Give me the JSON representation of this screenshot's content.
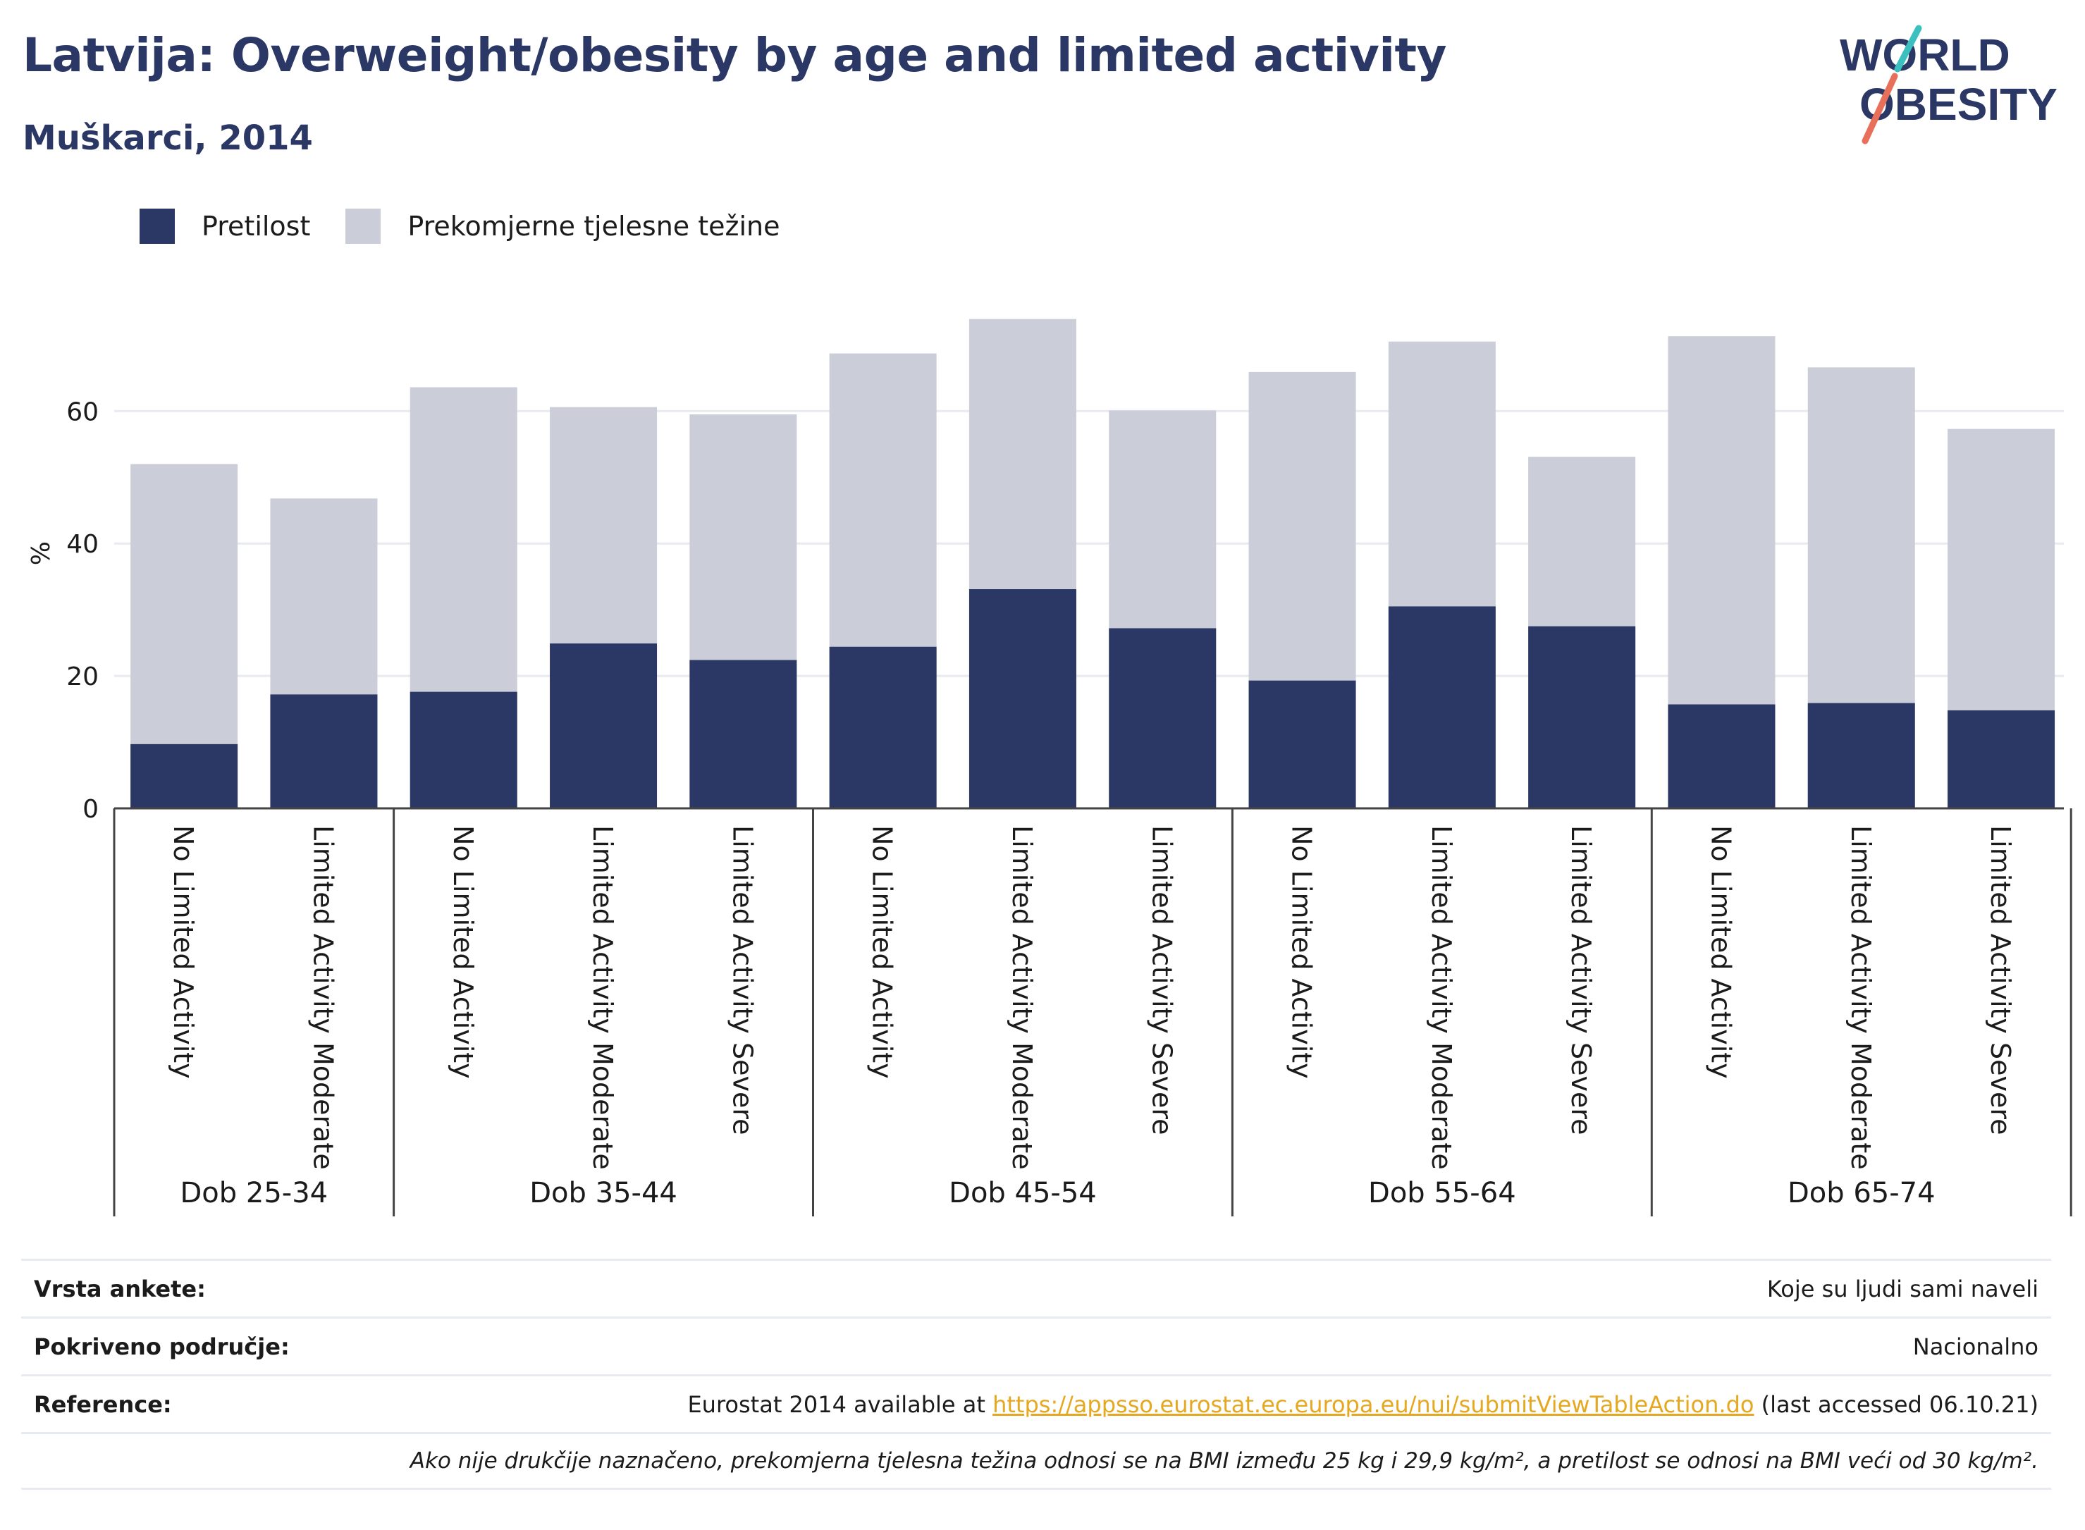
{
  "header": {
    "title": "Latvija: Overweight/obesity by age and limited activity",
    "subtitle": "Muškarci, 2014"
  },
  "logo": {
    "line1": "WORLD",
    "line2": "OBESITY",
    "accent_teal": "#3bbfbf",
    "accent_coral": "#e8705a",
    "text_color": "#2b3764"
  },
  "legend": [
    {
      "label": "Pretilost",
      "color": "#2b3764"
    },
    {
      "label": "Prekomjerne tjelesne težine",
      "color": "#cbcdd9"
    }
  ],
  "chart_data": {
    "type": "bar",
    "stacked": false,
    "overlapping": true,
    "ylabel": "%",
    "ylim": [
      0,
      78
    ],
    "yticks": [
      0,
      20,
      40,
      60
    ],
    "grid": true,
    "legend_position": "top-left",
    "groups": [
      {
        "label": "Dob 25-34",
        "categories": [
          "No Limited Activity",
          "Limited Activity Moderate"
        ]
      },
      {
        "label": "Dob 35-44",
        "categories": [
          "No Limited Activity",
          "Limited Activity Moderate",
          "Limited Activity Severe"
        ]
      },
      {
        "label": "Dob 45-54",
        "categories": [
          "No Limited Activity",
          "Limited Activity Moderate",
          "Limited Activity Severe"
        ]
      },
      {
        "label": "Dob 55-64",
        "categories": [
          "No Limited Activity",
          "Limited Activity Moderate",
          "Limited Activity Severe"
        ]
      },
      {
        "label": "Dob 65-74",
        "categories": [
          "No Limited Activity",
          "Limited Activity Moderate",
          "Limited Activity Severe"
        ]
      }
    ],
    "series": [
      {
        "name": "Prekomjerne tjelesne težine",
        "color": "#cbcdd9",
        "values": [
          52.0,
          46.8,
          63.6,
          60.6,
          59.5,
          68.7,
          73.9,
          60.1,
          65.9,
          70.5,
          53.1,
          71.3,
          66.6,
          57.3
        ]
      },
      {
        "name": "Pretilost",
        "color": "#2b3764",
        "values": [
          9.7,
          17.2,
          17.6,
          24.9,
          22.4,
          24.4,
          33.1,
          27.2,
          19.3,
          30.5,
          27.5,
          15.7,
          15.9,
          14.8
        ]
      }
    ]
  },
  "footer": {
    "survey_label": "Vrsta ankete:",
    "survey_value": "Koje su ljudi sami naveli",
    "coverage_label": "Pokriveno područje:",
    "coverage_value": "Nacionalno",
    "reference_label": "Reference:",
    "reference_prefix": "Eurostat 2014 available at ",
    "reference_link": "https://appsso.eurostat.ec.europa.eu/nui/submitViewTableAction.do",
    "reference_suffix": " (last accessed 06.10.21)",
    "note": "Ako nije drukčije naznačeno, prekomjerna tjelesna težina odnosi se na BMI između 25 kg i 29,9 kg/m², a pretilost se odnosi na BMI veći od 30 kg/m²."
  }
}
